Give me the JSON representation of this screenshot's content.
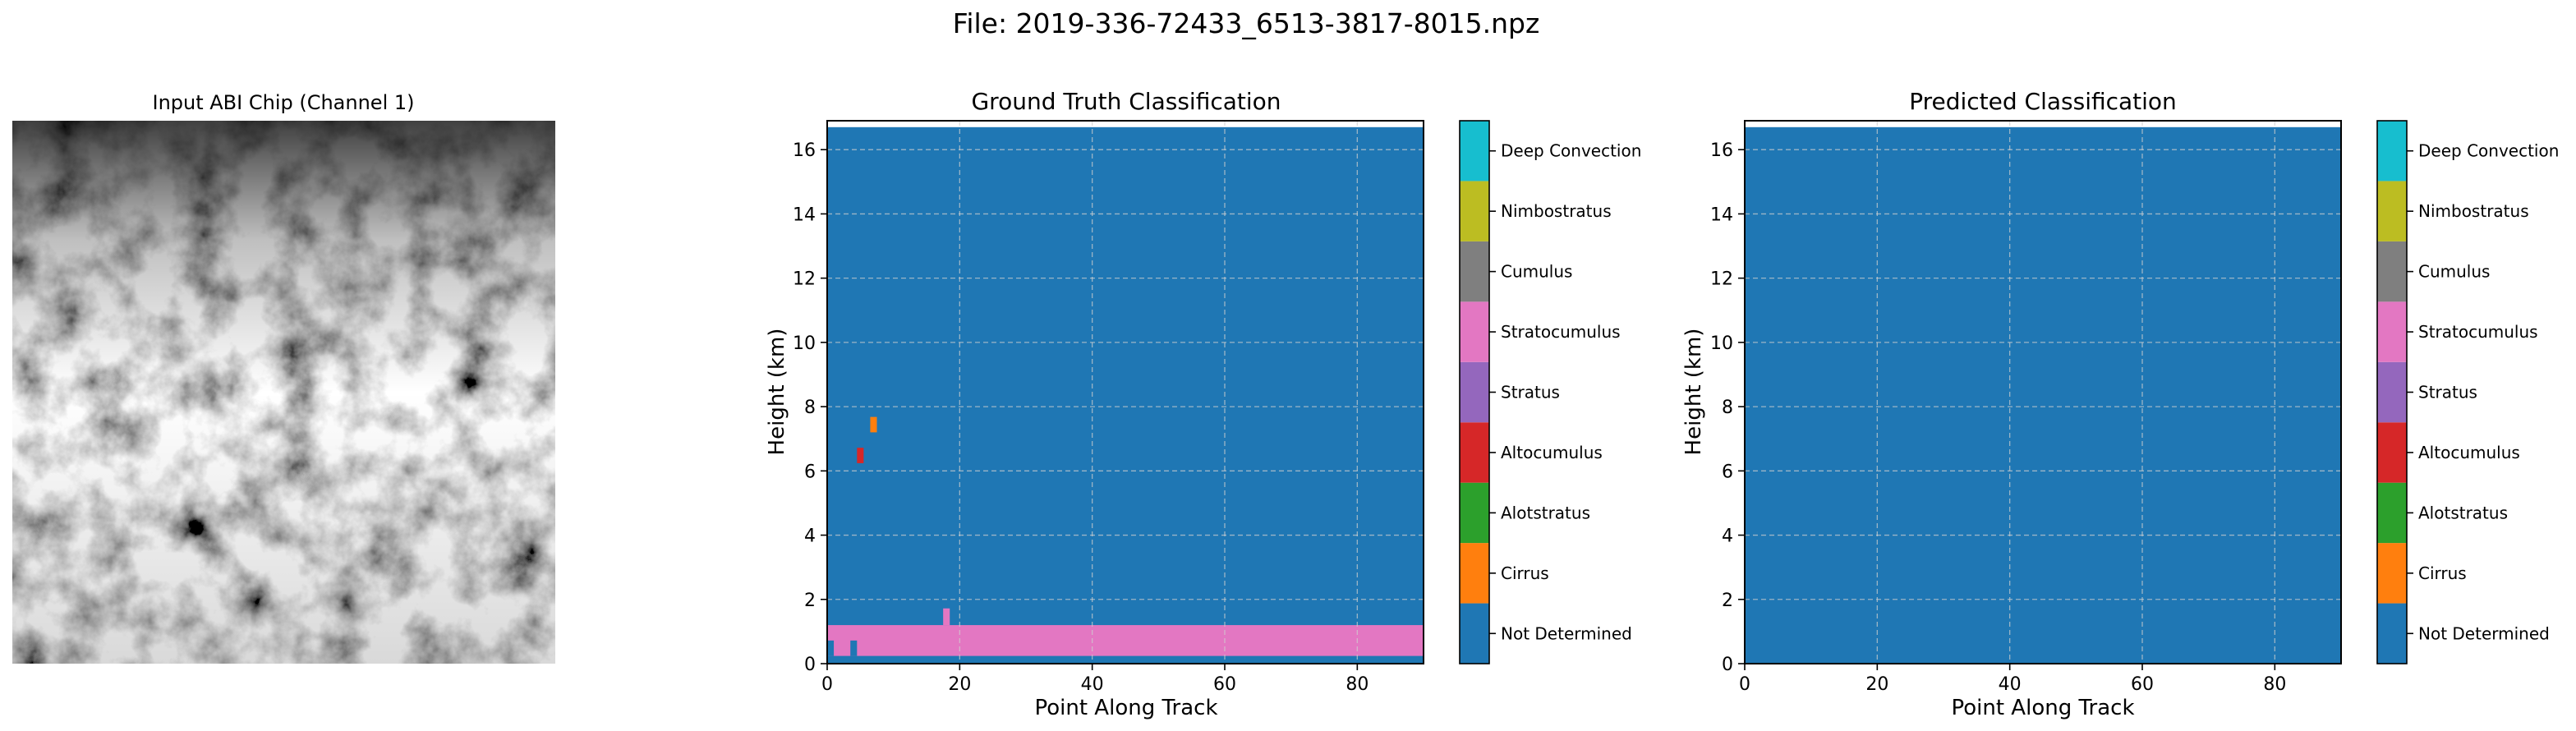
{
  "figure": {
    "suptitle": "File: 2019-336-72433_6513-3817-8015.npz"
  },
  "colors": {
    "Not Determined": "#1f77b4",
    "Cirrus": "#ff7f0e",
    "Alotstratus": "#2ca02c",
    "Altocumulus": "#d62728",
    "Stratus": "#9467bd",
    "Stratocumulus": "#e377c2",
    "Cumulus": "#7f7f7f",
    "Nimbostratus": "#bcbd22",
    "Deep Convection": "#17becf"
  },
  "chart_data": [
    {
      "type": "image",
      "title": "Input ABI Chip (Channel 1)",
      "colormap": "gray",
      "axes": "off"
    },
    {
      "type": "heatmap",
      "title": "Ground Truth Classification",
      "xlabel": "Point Along Track",
      "ylabel": "Height (km)",
      "xlim": [
        0,
        90
      ],
      "ylim": [
        0,
        16.9
      ],
      "xticks": [
        0,
        20,
        40,
        60,
        80
      ],
      "yticks": [
        0,
        2,
        4,
        6,
        8,
        10,
        12,
        14,
        16
      ],
      "grid": true,
      "background_class": "Not Determined",
      "data_top_km": 16.7,
      "regions": [
        {
          "class": "Stratocumulus",
          "x": [
            0,
            90
          ],
          "y": [
            0.24,
            1.2
          ]
        },
        {
          "class": "Stratocumulus",
          "x": [
            17.5,
            18.5
          ],
          "y": [
            1.2,
            1.72
          ]
        },
        {
          "class": "Not Determined",
          "x": [
            0,
            1
          ],
          "y": [
            0.24,
            0.72
          ]
        },
        {
          "class": "Not Determined",
          "x": [
            3.5,
            4.5
          ],
          "y": [
            0.24,
            0.72
          ]
        },
        {
          "class": "Altocumulus",
          "x": [
            4.5,
            5.5
          ],
          "y": [
            6.24,
            6.72
          ]
        },
        {
          "class": "Cirrus",
          "x": [
            6.5,
            7.5
          ],
          "y": [
            7.2,
            7.68
          ]
        }
      ],
      "colorbar": {
        "labels": [
          "Not Determined",
          "Cirrus",
          "Alotstratus",
          "Altocumulus",
          "Stratus",
          "Stratocumulus",
          "Cumulus",
          "Nimbostratus",
          "Deep Convection"
        ]
      }
    },
    {
      "type": "heatmap",
      "title": "Predicted Classification",
      "xlabel": "Point Along Track",
      "ylabel": "Height (km)",
      "xlim": [
        0,
        90
      ],
      "ylim": [
        0,
        16.9
      ],
      "xticks": [
        0,
        20,
        40,
        60,
        80
      ],
      "yticks": [
        0,
        2,
        4,
        6,
        8,
        10,
        12,
        14,
        16
      ],
      "grid": true,
      "background_class": "Not Determined",
      "data_top_km": 16.7,
      "regions": [],
      "colorbar": {
        "labels": [
          "Not Determined",
          "Cirrus",
          "Alotstratus",
          "Altocumulus",
          "Stratus",
          "Stratocumulus",
          "Cumulus",
          "Nimbostratus",
          "Deep Convection"
        ]
      }
    }
  ]
}
